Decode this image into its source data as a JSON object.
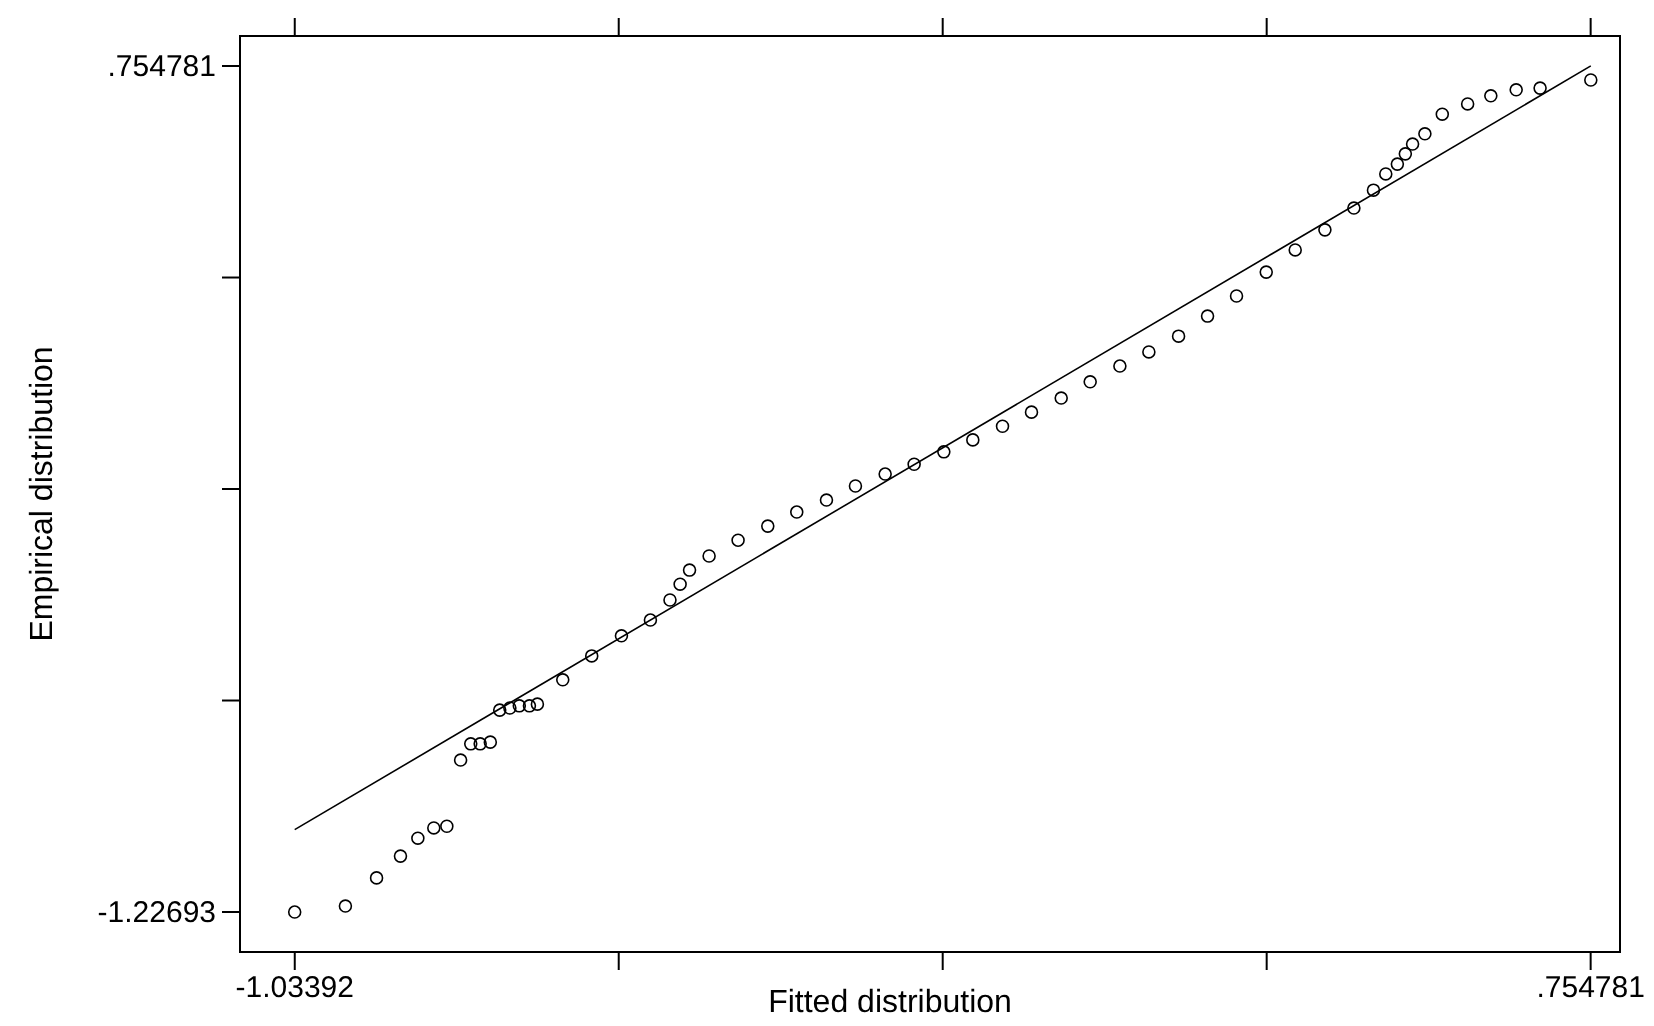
{
  "chart_data": {
    "type": "scatter",
    "xlabel": "Fitted  distribution",
    "ylabel": "Empirical distribution",
    "xlim": [
      -1.1095,
      0.7953
    ],
    "ylim": [
      -1.3206,
      0.8251
    ],
    "xticks": [
      -1.03392,
      {
        "value": -0.58675,
        "label": null
      },
      {
        "value": -0.13957,
        "label": null
      },
      {
        "value": 0.30761,
        "label": null
      },
      {
        "value": 0.754781,
        "label": ".754781"
      }
    ],
    "yticks": [
      -1.22693,
      {
        "value": -0.7315,
        "label": null
      },
      {
        "value": -0.23607,
        "label": null
      },
      {
        "value": 0.25935,
        "label": null
      },
      {
        "value": 0.754781,
        "label": ".754781"
      }
    ],
    "grid": false,
    "marker": "circle",
    "series": [
      {
        "color": "#000000",
        "x": [
          -1.034,
          -0.964,
          -0.921,
          -0.888,
          -0.864,
          -0.842,
          -0.824,
          -0.805,
          -0.791,
          -0.778,
          -0.764,
          -0.751,
          -0.737,
          -0.724,
          -0.71,
          -0.699,
          -0.664,
          -0.624,
          -0.583,
          -0.543,
          -0.516,
          -0.502,
          -0.489,
          -0.462,
          -0.422,
          -0.381,
          -0.341,
          -0.3,
          -0.26,
          -0.219,
          -0.179,
          -0.138,
          -0.098,
          -0.057,
          -0.017,
          0.024,
          0.064,
          0.105,
          0.145,
          0.186,
          0.226,
          0.266,
          0.307,
          0.347,
          0.388,
          0.428,
          0.455,
          0.472,
          0.488,
          0.499,
          0.509,
          0.526,
          0.55,
          0.585,
          0.617,
          0.652,
          0.685,
          0.755
        ],
        "values": [
          -1.227,
          -1.213,
          -1.147,
          -1.096,
          -1.054,
          -1.03,
          -1.026,
          -0.871,
          -0.833,
          -0.833,
          -0.829,
          -0.754,
          -0.749,
          -0.744,
          -0.744,
          -0.74,
          -0.683,
          -0.627,
          -0.58,
          -0.543,
          -0.496,
          -0.459,
          -0.426,
          -0.393,
          -0.356,
          -0.323,
          -0.29,
          -0.262,
          -0.229,
          -0.201,
          -0.178,
          -0.149,
          -0.121,
          -0.089,
          -0.056,
          -0.023,
          0.015,
          0.052,
          0.085,
          0.122,
          0.169,
          0.216,
          0.272,
          0.324,
          0.371,
          0.422,
          0.464,
          0.502,
          0.525,
          0.549,
          0.572,
          0.596,
          0.642,
          0.666,
          0.685,
          0.699,
          0.703,
          0.722
        ]
      },
      {
        "type": "line",
        "color": "#000000",
        "marker": "none",
        "x": [
          -1.034,
          0.755
        ],
        "values": [
          -1.034,
          0.755
        ]
      }
    ]
  }
}
